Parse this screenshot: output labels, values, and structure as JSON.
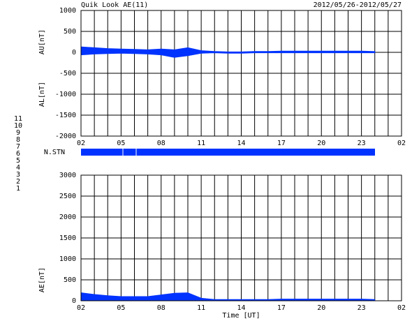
{
  "title": "Quik Look AE(11)",
  "period": "2012/05/26-2012/05/27",
  "station_label": "N.STN",
  "station_legend": [
    {
      "label": "11",
      "color": "#00cccc"
    },
    {
      "label": "10",
      "color": "#ff00ff"
    },
    {
      "label": "9",
      "color": "#0000ff"
    },
    {
      "label": "8",
      "color": "#e8e800"
    },
    {
      "label": "7",
      "color": "#66cc66"
    },
    {
      "label": "6",
      "color": "#ff0000"
    },
    {
      "label": "5",
      "color": "#dddddd"
    },
    {
      "label": "4",
      "color": "#999999"
    },
    {
      "label": "3",
      "color": "#008080"
    },
    {
      "label": "2",
      "color": "#8000ff"
    },
    {
      "label": "1",
      "color": "#0000cc"
    }
  ],
  "chart_data": [
    {
      "type": "area",
      "ylabels": [
        "AU[nT]",
        "AL[nT]"
      ],
      "x": [
        2,
        3,
        4,
        5,
        6,
        7,
        8,
        9,
        10,
        11,
        12,
        13,
        14,
        15,
        16,
        17,
        18,
        19,
        20,
        21,
        22,
        23,
        24
      ],
      "series": [
        {
          "color": "#0033ff",
          "values": [
            130,
            110,
            90,
            80,
            70,
            60,
            80,
            60,
            110,
            40,
            20,
            10,
            10,
            20,
            20,
            30,
            30,
            30,
            30,
            30,
            30,
            30,
            20
          ]
        },
        {
          "color": "#0033ff",
          "values": [
            -60,
            -40,
            -30,
            -20,
            -30,
            -40,
            -60,
            -120,
            -80,
            -20,
            -10,
            -20,
            -20,
            -10,
            -10,
            -10,
            -10,
            -10,
            -10,
            -10,
            -10,
            -10,
            -10
          ]
        }
      ],
      "xlim": [
        2,
        26
      ],
      "ylim": [
        -2000,
        1000
      ],
      "xticks": [
        {
          "value": 2,
          "label": "02"
        },
        {
          "value": 5,
          "label": "05"
        },
        {
          "value": 8,
          "label": "08"
        },
        11,
        14,
        17,
        20,
        23,
        {
          "value": 26,
          "label": "02"
        }
      ],
      "xminor": [
        3,
        4,
        6,
        7,
        9,
        10,
        12,
        13,
        15,
        16,
        18,
        19,
        21,
        22,
        24,
        25
      ],
      "yticks": [
        -2000,
        -1500,
        -1000,
        -500,
        0,
        500,
        1000
      ],
      "grid": true
    },
    {
      "type": "area",
      "ylabels": [
        "AE[nT]"
      ],
      "xlabel": "Time [UT]",
      "x": [
        2,
        3,
        4,
        5,
        6,
        7,
        8,
        9,
        10,
        11,
        12,
        13,
        14,
        15,
        16,
        17,
        18,
        19,
        20,
        21,
        22,
        23,
        24
      ],
      "series": [
        {
          "color": "#0033ff",
          "values": [
            190,
            150,
            120,
            100,
            100,
            100,
            140,
            180,
            190,
            60,
            30,
            30,
            30,
            30,
            30,
            40,
            40,
            40,
            40,
            40,
            40,
            40,
            30
          ]
        }
      ],
      "xlim": [
        2,
        26
      ],
      "ylim": [
        0,
        3000
      ],
      "xticks": [
        {
          "value": 2,
          "label": "02"
        },
        {
          "value": 5,
          "label": "05"
        },
        {
          "value": 8,
          "label": "08"
        },
        11,
        14,
        17,
        20,
        23,
        {
          "value": 26,
          "label": "02"
        }
      ],
      "xminor": [
        3,
        4,
        6,
        7,
        9,
        10,
        12,
        13,
        15,
        16,
        18,
        19,
        21,
        22,
        24,
        25
      ],
      "yticks": [
        0,
        500,
        1000,
        1500,
        2000,
        2500,
        3000
      ],
      "grid": true
    }
  ]
}
